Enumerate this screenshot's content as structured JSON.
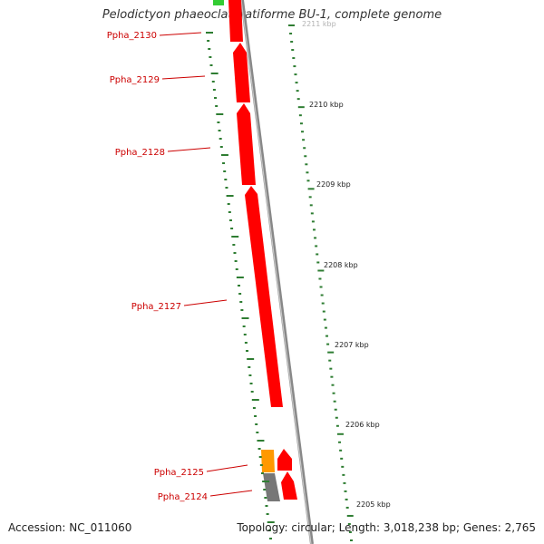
{
  "title": "Pelodictyon phaeoclathratiforme BU-1, complete genome",
  "footer": {
    "accession": "Accession: NC_011060",
    "topology": "Topology: circular; Length: 3,018,238 bp; Genes: 2,765"
  },
  "colors": {
    "gene_red": "#ff0000",
    "gene_orange": "#ff9900",
    "gene_gray": "#777777",
    "gene_green": "#33cc33",
    "label_red": "#cc0000",
    "tick_green": "#2e7d32",
    "backbone": "#999999"
  },
  "kbp_ticks": [
    {
      "label": "2211 kbp"
    },
    {
      "label": "2210 kbp"
    },
    {
      "label": "2209 kbp"
    },
    {
      "label": "2208 kbp"
    },
    {
      "label": "2207 kbp"
    },
    {
      "label": "2206 kbp"
    },
    {
      "label": "2205 kbp"
    }
  ],
  "genes": [
    {
      "label": "Ppha_2130",
      "color": "red"
    },
    {
      "label": "Ppha_2129",
      "color": "red"
    },
    {
      "label": "Ppha_2128",
      "color": "red"
    },
    {
      "label": "Ppha_2127",
      "color": "red"
    },
    {
      "label": "Ppha_2125",
      "color": "orange"
    },
    {
      "label": "Ppha_2124",
      "color": "gray"
    }
  ]
}
